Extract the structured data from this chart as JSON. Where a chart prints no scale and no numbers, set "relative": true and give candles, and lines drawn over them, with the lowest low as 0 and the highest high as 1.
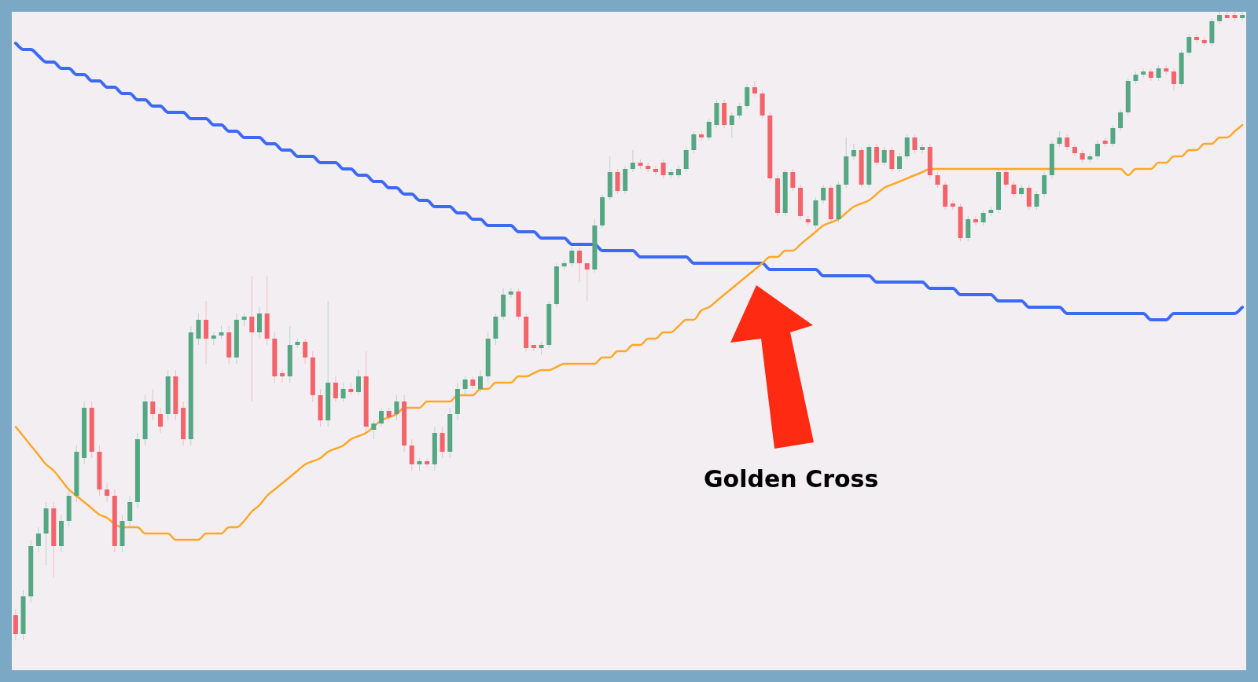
{
  "chart_data": {
    "type": "candlestick",
    "relative": true,
    "marker": "none",
    "line_style": "solid",
    "categories": [
      null,
      null,
      null,
      null,
      null,
      null,
      null,
      null,
      null,
      null,
      null,
      null,
      null,
      null,
      null,
      null,
      null,
      null,
      null,
      null,
      null,
      null,
      null,
      null,
      null,
      null,
      null,
      null,
      null,
      null,
      null,
      null,
      null,
      null,
      null,
      null,
      null,
      null,
      null,
      null,
      null,
      null,
      null,
      null,
      null,
      null,
      null,
      null,
      null,
      null,
      null,
      null,
      null,
      null,
      null,
      null,
      null,
      null,
      null,
      null,
      null,
      null,
      null,
      null,
      null,
      null,
      null,
      null,
      null,
      null,
      null,
      null,
      null,
      null,
      null,
      null,
      null,
      null,
      null,
      null,
      null,
      null,
      null,
      null,
      null,
      null,
      null,
      null,
      null,
      null,
      null,
      null,
      null,
      null,
      null,
      null,
      null,
      null,
      null,
      null,
      null,
      null,
      null,
      null,
      null,
      null,
      null,
      null,
      null,
      null,
      null,
      null,
      null,
      null,
      null,
      null,
      null,
      null,
      null,
      null,
      null,
      null,
      null,
      null,
      null,
      null,
      null,
      null,
      null,
      null,
      null,
      null,
      null,
      null,
      null,
      null,
      null,
      null,
      null,
      null,
      null,
      null,
      null,
      null,
      null,
      null,
      null,
      null,
      null,
      null,
      null,
      null,
      null,
      null,
      null,
      null,
      null,
      null,
      null,
      null,
      null,
      null
    ],
    "ohlc": [
      [
        0.04,
        0.05,
        0,
        0.01
      ],
      [
        0.01,
        0.08,
        0,
        0.07
      ],
      [
        0.07,
        0.16,
        0.06,
        0.15
      ],
      [
        0.15,
        0.18,
        0.14,
        0.17
      ],
      [
        0.17,
        0.22,
        0.12,
        0.21
      ],
      [
        0.21,
        0.22,
        0.1,
        0.15
      ],
      [
        0.15,
        0.2,
        0.14,
        0.19
      ],
      [
        0.19,
        0.24,
        0.18,
        0.23
      ],
      [
        0.23,
        0.31,
        0.22,
        0.3
      ],
      [
        0.29,
        0.38,
        0.28,
        0.37
      ],
      [
        0.37,
        0.38,
        0.29,
        0.3
      ],
      [
        0.3,
        0.31,
        0.23,
        0.24
      ],
      [
        0.24,
        0.25,
        0.22,
        0.23
      ],
      [
        0.23,
        0.24,
        0.14,
        0.15
      ],
      [
        0.15,
        0.2,
        0.14,
        0.19
      ],
      [
        0.19,
        0.23,
        0.18,
        0.22
      ],
      [
        0.22,
        0.33,
        0.21,
        0.32
      ],
      [
        0.32,
        0.39,
        0.31,
        0.38
      ],
      [
        0.38,
        0.4,
        0.35,
        0.36
      ],
      [
        0.36,
        0.37,
        0.33,
        0.34
      ],
      [
        0.36,
        0.43,
        0.35,
        0.42
      ],
      [
        0.42,
        0.43,
        0.35,
        0.36
      ],
      [
        0.37,
        0.38,
        0.31,
        0.32
      ],
      [
        0.32,
        0.5,
        0.31,
        0.49
      ],
      [
        0.48,
        0.52,
        0.47,
        0.51
      ],
      [
        0.51,
        0.54,
        0.44,
        0.48
      ],
      [
        0.48,
        0.49,
        0.47,
        0.485
      ],
      [
        0.485,
        0.5,
        0.48,
        0.49
      ],
      [
        0.49,
        0.5,
        0.44,
        0.45
      ],
      [
        0.45,
        0.52,
        0.44,
        0.51
      ],
      [
        0.51,
        0.52,
        0.5,
        0.515
      ],
      [
        0.515,
        0.58,
        0.38,
        0.49
      ],
      [
        0.49,
        0.53,
        0.48,
        0.52
      ],
      [
        0.52,
        0.58,
        0.47,
        0.48
      ],
      [
        0.48,
        0.49,
        0.41,
        0.42
      ],
      [
        0.425,
        0.43,
        0.41,
        0.42
      ],
      [
        0.42,
        0.5,
        0.41,
        0.47
      ],
      [
        0.47,
        0.48,
        0.465,
        0.475
      ],
      [
        0.475,
        0.48,
        0.44,
        0.45
      ],
      [
        0.45,
        0.46,
        0.38,
        0.39
      ],
      [
        0.39,
        0.4,
        0.34,
        0.35
      ],
      [
        0.35,
        0.54,
        0.34,
        0.41
      ],
      [
        0.41,
        0.42,
        0.38,
        0.385
      ],
      [
        0.385,
        0.41,
        0.38,
        0.4
      ],
      [
        0.4,
        0.41,
        0.39,
        0.395
      ],
      [
        0.395,
        0.43,
        0.39,
        0.42
      ],
      [
        0.42,
        0.46,
        0.33,
        0.34
      ],
      [
        0.335,
        0.35,
        0.32,
        0.345
      ],
      [
        0.345,
        0.37,
        0.34,
        0.365
      ],
      [
        0.365,
        0.37,
        0.35,
        0.355
      ],
      [
        0.36,
        0.39,
        0.35,
        0.38
      ],
      [
        0.38,
        0.39,
        0.3,
        0.31
      ],
      [
        0.31,
        0.32,
        0.27,
        0.28
      ],
      [
        0.28,
        0.29,
        0.27,
        0.285
      ],
      [
        0.285,
        0.29,
        0.275,
        0.28
      ],
      [
        0.28,
        0.34,
        0.27,
        0.33
      ],
      [
        0.33,
        0.34,
        0.29,
        0.3
      ],
      [
        0.3,
        0.37,
        0.29,
        0.36
      ],
      [
        0.36,
        0.41,
        0.35,
        0.4
      ],
      [
        0.4,
        0.42,
        0.39,
        0.415
      ],
      [
        0.415,
        0.42,
        0.4,
        0.405
      ],
      [
        0.4,
        0.43,
        0.395,
        0.42
      ],
      [
        0.42,
        0.49,
        0.41,
        0.48
      ],
      [
        0.48,
        0.52,
        0.47,
        0.515
      ],
      [
        0.515,
        0.56,
        0.51,
        0.55
      ],
      [
        0.55,
        0.56,
        0.545,
        0.555
      ],
      [
        0.555,
        0.56,
        0.51,
        0.515
      ],
      [
        0.515,
        0.52,
        0.46,
        0.465
      ],
      [
        0.47,
        0.47,
        0.46,
        0.465
      ],
      [
        0.465,
        0.475,
        0.455,
        0.47
      ],
      [
        0.47,
        0.54,
        0.465,
        0.535
      ],
      [
        0.535,
        0.6,
        0.53,
        0.595
      ],
      [
        0.595,
        0.605,
        0.59,
        0.6
      ],
      [
        0.6,
        0.625,
        0.595,
        0.62
      ],
      [
        0.62,
        0.625,
        0.57,
        0.6
      ],
      [
        0.6,
        0.6,
        0.54,
        0.59
      ],
      [
        0.59,
        0.67,
        0.585,
        0.66
      ],
      [
        0.66,
        0.71,
        0.655,
        0.705
      ],
      [
        0.705,
        0.77,
        0.7,
        0.745
      ],
      [
        0.745,
        0.75,
        0.71,
        0.715
      ],
      [
        0.715,
        0.755,
        0.71,
        0.75
      ],
      [
        0.75,
        0.78,
        0.745,
        0.76
      ],
      [
        0.76,
        0.765,
        0.75,
        0.755
      ],
      [
        0.755,
        0.76,
        0.745,
        0.75
      ],
      [
        0.75,
        0.755,
        0.74,
        0.745
      ],
      [
        0.76,
        0.765,
        0.735,
        0.74
      ],
      [
        0.74,
        0.75,
        0.735,
        0.745
      ],
      [
        0.74,
        0.755,
        0.735,
        0.75
      ],
      [
        0.75,
        0.785,
        0.745,
        0.78
      ],
      [
        0.78,
        0.81,
        0.775,
        0.805
      ],
      [
        0.805,
        0.81,
        0.795,
        0.8
      ],
      [
        0.8,
        0.83,
        0.795,
        0.825
      ],
      [
        0.82,
        0.86,
        0.815,
        0.855
      ],
      [
        0.855,
        0.86,
        0.815,
        0.82
      ],
      [
        0.82,
        0.84,
        0.8,
        0.835
      ],
      [
        0.835,
        0.855,
        0.83,
        0.85
      ],
      [
        0.85,
        0.885,
        0.845,
        0.88
      ],
      [
        0.88,
        0.89,
        0.865,
        0.87
      ],
      [
        0.87,
        0.875,
        0.83,
        0.835
      ],
      [
        0.835,
        0.84,
        0.73,
        0.735
      ],
      [
        0.735,
        0.74,
        0.675,
        0.68
      ],
      [
        0.68,
        0.75,
        0.675,
        0.745
      ],
      [
        0.745,
        0.75,
        0.715,
        0.72
      ],
      [
        0.72,
        0.725,
        0.67,
        0.675
      ],
      [
        0.67,
        0.675,
        0.66,
        0.665
      ],
      [
        0.66,
        0.705,
        0.655,
        0.7
      ],
      [
        0.7,
        0.725,
        0.695,
        0.72
      ],
      [
        0.72,
        0.725,
        0.665,
        0.67
      ],
      [
        0.67,
        0.73,
        0.665,
        0.725
      ],
      [
        0.725,
        0.8,
        0.72,
        0.77
      ],
      [
        0.77,
        0.79,
        0.765,
        0.78
      ],
      [
        0.78,
        0.785,
        0.72,
        0.725
      ],
      [
        0.725,
        0.79,
        0.72,
        0.785
      ],
      [
        0.785,
        0.79,
        0.755,
        0.76
      ],
      [
        0.76,
        0.785,
        0.755,
        0.78
      ],
      [
        0.78,
        0.785,
        0.745,
        0.75
      ],
      [
        0.75,
        0.775,
        0.745,
        0.77
      ],
      [
        0.77,
        0.805,
        0.765,
        0.8
      ],
      [
        0.8,
        0.805,
        0.775,
        0.78
      ],
      [
        0.78,
        0.79,
        0.775,
        0.785
      ],
      [
        0.785,
        0.79,
        0.735,
        0.74
      ],
      [
        0.74,
        0.745,
        0.72,
        0.725
      ],
      [
        0.725,
        0.73,
        0.685,
        0.69
      ],
      [
        0.695,
        0.7,
        0.685,
        0.69
      ],
      [
        0.69,
        0.695,
        0.635,
        0.64
      ],
      [
        0.64,
        0.675,
        0.635,
        0.67
      ],
      [
        0.67,
        0.675,
        0.66,
        0.665
      ],
      [
        0.665,
        0.685,
        0.66,
        0.68
      ],
      [
        0.68,
        0.69,
        0.675,
        0.685
      ],
      [
        0.685,
        0.75,
        0.68,
        0.745
      ],
      [
        0.745,
        0.75,
        0.72,
        0.725
      ],
      [
        0.725,
        0.73,
        0.705,
        0.71
      ],
      [
        0.71,
        0.725,
        0.705,
        0.72
      ],
      [
        0.72,
        0.725,
        0.685,
        0.69
      ],
      [
        0.69,
        0.715,
        0.685,
        0.71
      ],
      [
        0.71,
        0.745,
        0.705,
        0.74
      ],
      [
        0.74,
        0.795,
        0.735,
        0.79
      ],
      [
        0.79,
        0.81,
        0.785,
        0.8
      ],
      [
        0.8,
        0.805,
        0.78,
        0.785
      ],
      [
        0.785,
        0.79,
        0.77,
        0.775
      ],
      [
        0.775,
        0.78,
        0.76,
        0.765
      ],
      [
        0.765,
        0.775,
        0.76,
        0.77
      ],
      [
        0.77,
        0.795,
        0.765,
        0.79
      ],
      [
        0.795,
        0.8,
        0.785,
        0.79
      ],
      [
        0.79,
        0.82,
        0.785,
        0.815
      ],
      [
        0.815,
        0.845,
        0.81,
        0.84
      ],
      [
        0.84,
        0.895,
        0.835,
        0.89
      ],
      [
        0.89,
        0.905,
        0.885,
        0.9
      ],
      [
        0.9,
        0.91,
        0.895,
        0.905
      ],
      [
        0.905,
        0.91,
        0.89,
        0.895
      ],
      [
        0.895,
        0.915,
        0.89,
        0.91
      ],
      [
        0.91,
        0.915,
        0.9,
        0.905
      ],
      [
        0.905,
        0.91,
        0.875,
        0.885
      ],
      [
        0.885,
        0.94,
        0.88,
        0.935
      ],
      [
        0.935,
        0.965,
        0.93,
        0.96
      ],
      [
        0.96,
        0.965,
        0.95,
        0.955
      ],
      [
        0.955,
        0.96,
        0.945,
        0.95
      ],
      [
        0.95,
        0.99,
        0.945,
        0.985
      ],
      [
        0.985,
        1.0,
        0.98,
        0.995
      ],
      [
        0.995,
        1.0,
        0.99,
        0.99
      ],
      [
        0.995,
        1.0,
        0.985,
        0.99
      ],
      [
        0.99,
        1.0,
        0.985,
        0.995
      ]
    ],
    "series": [
      {
        "type": "line",
        "color": "#ffa726",
        "values": [
          0.34,
          0.325,
          0.31,
          0.295,
          0.28,
          0.27,
          0.255,
          0.24,
          0.23,
          0.22,
          0.21,
          0.2,
          0.195,
          0.185,
          0.18,
          0.18,
          0.18,
          0.17,
          0.17,
          0.17,
          0.17,
          0.16,
          0.16,
          0.16,
          0.16,
          0.17,
          0.17,
          0.17,
          0.18,
          0.18,
          0.19,
          0.205,
          0.215,
          0.23,
          0.24,
          0.25,
          0.26,
          0.27,
          0.28,
          0.285,
          0.29,
          0.3,
          0.305,
          0.31,
          0.32,
          0.325,
          0.33,
          0.34,
          0.35,
          0.355,
          0.36,
          0.37,
          0.37,
          0.37,
          0.38,
          0.38,
          0.38,
          0.38,
          0.39,
          0.39,
          0.39,
          0.4,
          0.4,
          0.41,
          0.41,
          0.41,
          0.42,
          0.42,
          0.425,
          0.43,
          0.43,
          0.435,
          0.44,
          0.44,
          0.44,
          0.44,
          0.44,
          0.45,
          0.45,
          0.46,
          0.46,
          0.47,
          0.47,
          0.48,
          0.48,
          0.49,
          0.49,
          0.5,
          0.51,
          0.51,
          0.525,
          0.53,
          0.54,
          0.55,
          0.56,
          0.57,
          0.58,
          0.59,
          0.6,
          0.61,
          0.61,
          0.62,
          0.62,
          0.63,
          0.64,
          0.65,
          0.66,
          0.665,
          0.67,
          0.68,
          0.69,
          0.695,
          0.7,
          0.71,
          0.72,
          0.725,
          0.73,
          0.735,
          0.74,
          0.745,
          0.75,
          0.75,
          0.75,
          0.75,
          0.75,
          0.75,
          0.75,
          0.75,
          0.75,
          0.75,
          0.75,
          0.75,
          0.75,
          0.75,
          0.75,
          0.75,
          0.75,
          0.75,
          0.75,
          0.75,
          0.75,
          0.75,
          0.75,
          0.75,
          0.75,
          0.75,
          0.74,
          0.75,
          0.75,
          0.75,
          0.76,
          0.76,
          0.77,
          0.77,
          0.78,
          0.78,
          0.79,
          0.79,
          0.8,
          0.8,
          0.81,
          0.82
        ]
      },
      {
        "type": "line",
        "color": "#3d6af5",
        "values": [
          0.95,
          0.94,
          0.94,
          0.93,
          0.92,
          0.92,
          0.91,
          0.91,
          0.9,
          0.9,
          0.89,
          0.89,
          0.88,
          0.88,
          0.87,
          0.87,
          0.86,
          0.86,
          0.85,
          0.85,
          0.84,
          0.84,
          0.84,
          0.83,
          0.83,
          0.83,
          0.82,
          0.82,
          0.81,
          0.81,
          0.8,
          0.8,
          0.8,
          0.79,
          0.79,
          0.78,
          0.78,
          0.77,
          0.77,
          0.77,
          0.76,
          0.76,
          0.76,
          0.75,
          0.75,
          0.74,
          0.74,
          0.73,
          0.73,
          0.72,
          0.72,
          0.71,
          0.71,
          0.7,
          0.7,
          0.69,
          0.69,
          0.69,
          0.68,
          0.68,
          0.67,
          0.67,
          0.66,
          0.66,
          0.66,
          0.66,
          0.65,
          0.65,
          0.65,
          0.64,
          0.64,
          0.64,
          0.64,
          0.63,
          0.63,
          0.63,
          0.63,
          0.62,
          0.62,
          0.62,
          0.62,
          0.62,
          0.61,
          0.61,
          0.61,
          0.61,
          0.61,
          0.61,
          0.61,
          0.6,
          0.6,
          0.6,
          0.6,
          0.6,
          0.6,
          0.6,
          0.6,
          0.6,
          0.6,
          0.59,
          0.59,
          0.59,
          0.59,
          0.59,
          0.59,
          0.59,
          0.58,
          0.58,
          0.58,
          0.58,
          0.58,
          0.58,
          0.58,
          0.57,
          0.57,
          0.57,
          0.57,
          0.57,
          0.57,
          0.57,
          0.56,
          0.56,
          0.56,
          0.56,
          0.55,
          0.55,
          0.55,
          0.55,
          0.55,
          0.54,
          0.54,
          0.54,
          0.54,
          0.53,
          0.53,
          0.53,
          0.53,
          0.53,
          0.52,
          0.52,
          0.52,
          0.52,
          0.52,
          0.52,
          0.52,
          0.52,
          0.52,
          0.52,
          0.52,
          0.51,
          0.51,
          0.51,
          0.52,
          0.52,
          0.52,
          0.52,
          0.52,
          0.52,
          0.52,
          0.52,
          0.52,
          0.53
        ]
      }
    ],
    "annotations": [
      "Golden Cross"
    ]
  }
}
